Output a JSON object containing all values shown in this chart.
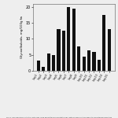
{
  "values": [
    3.2,
    1.2,
    5.5,
    5.0,
    13.0,
    12.5,
    20.0,
    19.5,
    7.5,
    4.5,
    6.5,
    6.0,
    3.5,
    17.5,
    13.0
  ],
  "bar_color": "#111111",
  "ylabel": "Glycoalkaloids, mg/100g fw",
  "ylim": [
    0,
    21
  ],
  "yticks": [
    0,
    5,
    10,
    15,
    20
  ],
  "ytick_labels": [
    "0",
    "5",
    "10",
    "15",
    "20"
  ],
  "bar_width": 0.65,
  "background_color": "#eeeeee",
  "x_labels": [
    "Lay1",
    "Lay2",
    "Lay3",
    "Lay4",
    "Lay5",
    "Lay6",
    "Lay7",
    "Lay8",
    "Lay9",
    "Lay10",
    "Lay11",
    "Lay12",
    "Lay13",
    "Lay14",
    "Lay15"
  ],
  "caption": "Fig 11. Glycoalkaloids content in continuous frying and kettle cooked potato chips. Data are mean of three replicates and standard deviation"
}
